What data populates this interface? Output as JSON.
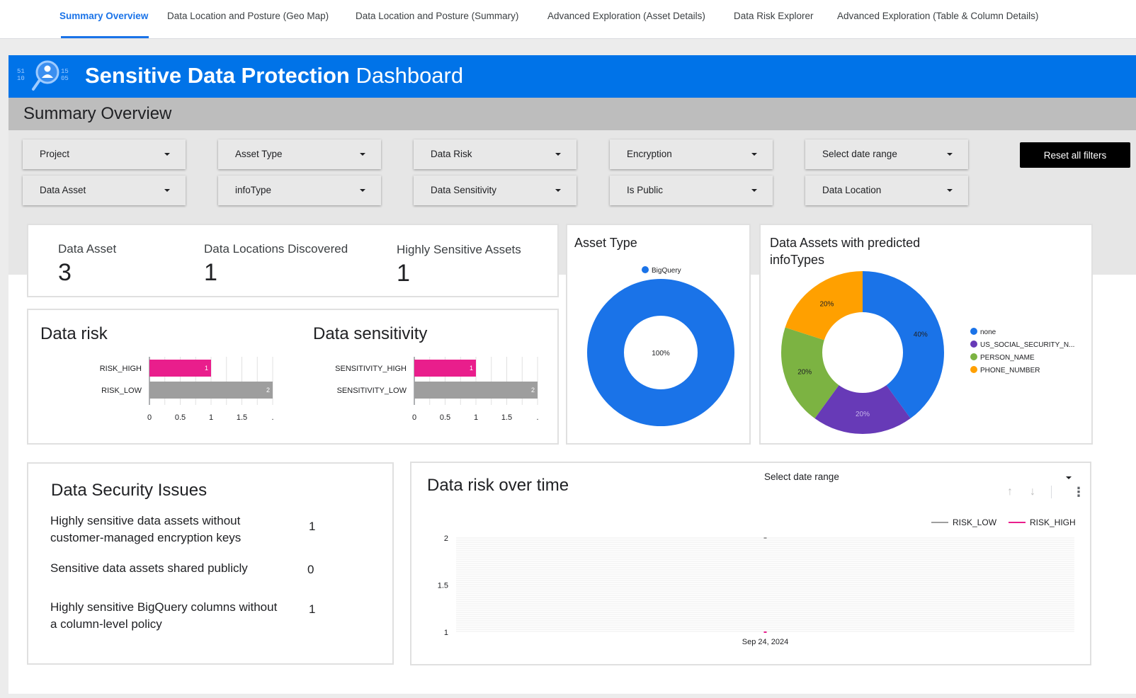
{
  "tabs": [
    {
      "label": "Summary Overview",
      "active": true
    },
    {
      "label": "Data Location and Posture (Geo Map)",
      "active": false
    },
    {
      "label": "Data Location and Posture (Summary)",
      "active": false
    },
    {
      "label": "Advanced Exploration (Asset Details)",
      "active": false
    },
    {
      "label": "Data Risk Explorer",
      "active": false
    },
    {
      "label": "Advanced Exploration (Table & Column Details)",
      "active": false
    }
  ],
  "banner": {
    "title_bold": "Sensitive Data Protection",
    "title_rest": " Dashboard",
    "logo_digits": [
      "51",
      "10",
      "15",
      "05"
    ]
  },
  "page_title": "Summary Overview",
  "filters": {
    "row1": [
      "Project",
      "Asset Type",
      "Data Risk",
      "Encryption",
      "Select date range"
    ],
    "row2": [
      "Data Asset",
      "infoType",
      "Data Sensitivity",
      "Is Public",
      "Data Location"
    ],
    "reset_label": "Reset all filters"
  },
  "kpis": [
    {
      "label": "Data Asset",
      "value": "3"
    },
    {
      "label": "Data Locations Discovered",
      "value": "1"
    },
    {
      "label": "Highly Sensitive Assets",
      "value": "1"
    }
  ],
  "colors": {
    "accent": "#0073e8",
    "risk_high": "#e91e8c",
    "risk_low": "#9e9e9e",
    "none": "#1a73e8",
    "ssn": "#673ab7",
    "person_name": "#7cb342",
    "phone_number": "#ffa000"
  },
  "asset_type_chart": {
    "title": "Asset Type",
    "chart_data": {
      "type": "pie",
      "labels": [
        "BigQuery"
      ],
      "values": [
        100
      ],
      "data_labels": [
        "100%"
      ],
      "legend": "top"
    }
  },
  "infotype_chart": {
    "title": "Data Assets with predicted infoTypes",
    "chart_data": {
      "type": "pie",
      "labels": [
        "none",
        "US_SOCIAL_SECURITY_N...",
        "PERSON_NAME",
        "PHONE_NUMBER"
      ],
      "values": [
        40,
        20,
        20,
        20
      ],
      "data_labels": [
        "40%",
        "20%",
        "20%",
        "20%"
      ],
      "legend": "right"
    }
  },
  "data_risk": {
    "title": "Data risk",
    "chart_data": {
      "type": "bar",
      "orientation": "horizontal",
      "categories": [
        "RISK_HIGH",
        "RISK_LOW"
      ],
      "values": [
        1,
        2
      ],
      "data_labels": [
        "1",
        "2"
      ],
      "x_ticks": [
        "0",
        "0.5",
        "1",
        "1.5",
        "."
      ],
      "xlim": [
        0,
        2
      ]
    }
  },
  "data_sensitivity": {
    "title": "Data sensitivity",
    "chart_data": {
      "type": "bar",
      "orientation": "horizontal",
      "categories": [
        "SENSITIVITY_HIGH",
        "SENSITIVITY_LOW"
      ],
      "values": [
        1,
        2
      ],
      "data_labels": [
        "1",
        "2"
      ],
      "x_ticks": [
        "0",
        "0.5",
        "1",
        "1.5",
        "."
      ],
      "xlim": [
        0,
        2
      ]
    }
  },
  "issues": {
    "title": "Data Security Issues",
    "items": [
      {
        "text": "Highly sensitive data assets without customer-managed encryption keys",
        "value": "1"
      },
      {
        "text": "Sensitive data assets shared publicly",
        "value": "0"
      },
      {
        "text": "Highly sensitive BigQuery columns without a column-level policy",
        "value": "1"
      }
    ]
  },
  "risk_over_time": {
    "title": "Data risk over time",
    "date_select_label": "Select date range",
    "chart_data": {
      "type": "line",
      "x": [
        "Sep 24, 2024"
      ],
      "series": [
        {
          "name": "RISK_LOW",
          "values": [
            2
          ]
        },
        {
          "name": "RISK_HIGH",
          "values": [
            1
          ]
        }
      ],
      "y_ticks": [
        "2",
        "1.5",
        "1"
      ],
      "ylim": [
        1,
        2
      ],
      "legend": "top-right"
    }
  }
}
